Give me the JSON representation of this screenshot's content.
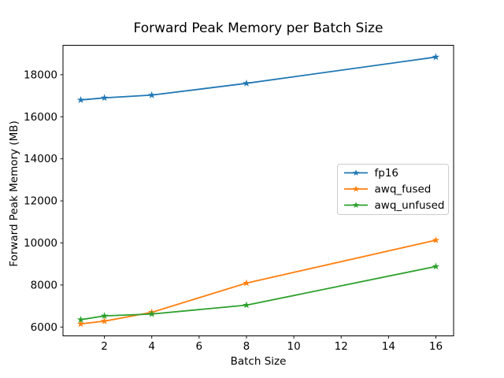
{
  "figure": {
    "background": "#ffffff",
    "axis_color": "#000000",
    "legend_border_color": "#cccccc",
    "legend_bg": "#ffffff"
  },
  "chart_data": {
    "type": "line",
    "title": "Forward Peak Memory per Batch Size",
    "xlabel": "Batch Size",
    "ylabel": "Forward Peak Memory (MB)",
    "x": [
      1,
      2,
      4,
      8,
      16
    ],
    "series": [
      {
        "name": "fp16",
        "color": "#1f77b4",
        "marker": "star",
        "values": [
          16800,
          16900,
          17030,
          17590,
          18840
        ]
      },
      {
        "name": "awq_fused",
        "color": "#ff7f0e",
        "marker": "star",
        "values": [
          6150,
          6280,
          6700,
          8090,
          10130
        ]
      },
      {
        "name": "awq_unfused",
        "color": "#2ca02c",
        "marker": "star",
        "values": [
          6350,
          6530,
          6620,
          7040,
          8880
        ]
      }
    ],
    "xlim": [
      0.25,
      16.75
    ],
    "ylim": [
      5580,
      19400
    ],
    "xticks": [
      2,
      4,
      6,
      8,
      10,
      12,
      14,
      16
    ],
    "yticks": [
      6000,
      8000,
      10000,
      12000,
      14000,
      16000,
      18000
    ],
    "grid": false,
    "legend": {
      "position": "center-right",
      "entries": [
        "fp16",
        "awq_fused",
        "awq_unfused"
      ]
    }
  }
}
